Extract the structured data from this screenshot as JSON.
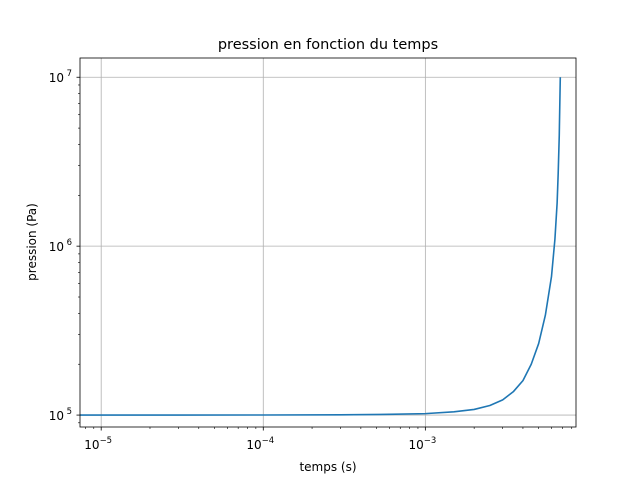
{
  "chart_data": {
    "type": "line",
    "title": "pression en fonction du temps",
    "xlabel": "temps (s)",
    "ylabel": "pression (Pa)",
    "x_scale": "log",
    "y_scale": "log",
    "xlim": [
      7.4e-06,
      0.0085
    ],
    "ylim": [
      85000,
      13000000
    ],
    "grid": true,
    "colors": {
      "line": "#1f77b4",
      "grid": "#b0b0b0",
      "axes": "#000000"
    },
    "x_ticks": [
      {
        "value": 1e-05,
        "base": "10",
        "exp": "−5"
      },
      {
        "value": 0.0001,
        "base": "10",
        "exp": "−4"
      },
      {
        "value": 0.001,
        "base": "10",
        "exp": "−3"
      }
    ],
    "y_ticks": [
      {
        "value": 100000,
        "base": "10",
        "exp": "5"
      },
      {
        "value": 1000000,
        "base": "10",
        "exp": "6"
      },
      {
        "value": 10000000,
        "base": "10",
        "exp": "7"
      }
    ],
    "series": [
      {
        "x": [
          7.4e-06,
          1e-05,
          3e-05,
          0.0001,
          0.0003,
          0.0006,
          0.001,
          0.0015,
          0.002,
          0.0025,
          0.003,
          0.0035,
          0.004,
          0.0045,
          0.005,
          0.0055,
          0.006,
          0.0063,
          0.0065,
          0.0066,
          0.0067,
          0.0068
        ],
        "y": [
          100000,
          100000,
          100000,
          100100,
          100400,
          101000,
          102000,
          104500,
          108000,
          114000,
          123000,
          138000,
          160000,
          200000,
          265000,
          390000,
          660000,
          1100000,
          1800000,
          2700000,
          4500000,
          10000000
        ]
      }
    ]
  }
}
